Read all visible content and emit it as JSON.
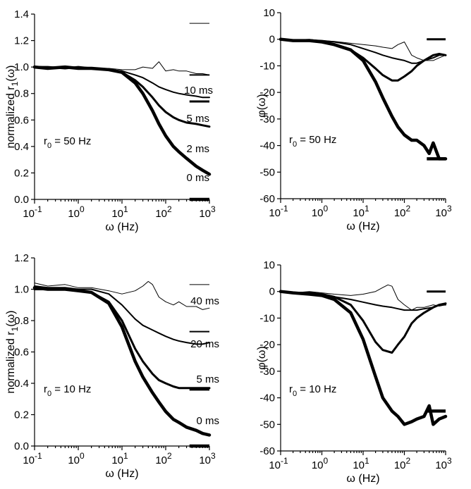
{
  "chart_data": [
    {
      "type": "line",
      "ylabel_main": "normalized r",
      "ylabel_sub": "1",
      "ylabel_tail": "(ω)",
      "xlabel": "ω (Hz)",
      "xscale": "log",
      "xlim": [
        0.1,
        1000
      ],
      "ylim": [
        0,
        1.4
      ],
      "yticks": [
        "0.0",
        "0.2",
        "0.4",
        "0.6",
        "0.8",
        "1.0",
        "1.2",
        "1.4"
      ],
      "xticks": [
        {
          "base": "10",
          "exp": "-1"
        },
        {
          "base": "10",
          "exp": "0"
        },
        {
          "base": "10",
          "exp": "1"
        },
        {
          "base": "10",
          "exp": "2"
        },
        {
          "base": "10",
          "exp": "3"
        }
      ],
      "note_main": "r",
      "note_sub": "0",
      "note_tail": " = 50 Hz",
      "series": [
        {
          "name": "10 ms",
          "weight": 1,
          "asymptote": 1.33,
          "x": [
            0.1,
            0.2,
            0.5,
            1,
            2,
            5,
            10,
            20,
            30,
            50,
            70,
            100,
            150,
            200,
            300,
            500,
            700,
            1000
          ],
          "y": [
            1.0,
            0.99,
            1.0,
            0.99,
            0.99,
            0.99,
            0.98,
            0.98,
            1.0,
            0.99,
            1.04,
            0.97,
            0.98,
            0.97,
            0.97,
            0.95,
            0.95,
            0.94
          ]
        },
        {
          "name": "5 ms",
          "weight": 2,
          "asymptote": 0.94,
          "x": [
            0.1,
            0.2,
            0.5,
            1,
            2,
            5,
            10,
            20,
            30,
            50,
            70,
            100,
            150,
            200,
            300,
            500,
            700,
            1000
          ],
          "y": [
            1.0,
            0.99,
            1.0,
            0.99,
            0.99,
            0.98,
            0.97,
            0.94,
            0.92,
            0.88,
            0.85,
            0.83,
            0.81,
            0.8,
            0.79,
            0.78,
            0.77,
            0.77
          ]
        },
        {
          "name": "2 ms",
          "weight": 3,
          "asymptote": 0.74,
          "x": [
            0.1,
            0.2,
            0.5,
            1,
            2,
            5,
            10,
            20,
            30,
            50,
            70,
            100,
            150,
            200,
            300,
            500,
            700,
            1000
          ],
          "y": [
            1.0,
            1.0,
            0.99,
            1.0,
            0.99,
            0.98,
            0.96,
            0.9,
            0.85,
            0.77,
            0.71,
            0.66,
            0.62,
            0.6,
            0.58,
            0.57,
            0.56,
            0.55
          ]
        },
        {
          "name": "0 ms",
          "weight": 4.5,
          "asymptote": 0.0,
          "x": [
            0.1,
            0.2,
            0.5,
            1,
            2,
            5,
            10,
            20,
            30,
            50,
            70,
            100,
            150,
            200,
            300,
            500,
            700,
            1000
          ],
          "y": [
            1.0,
            0.99,
            1.0,
            0.99,
            0.99,
            0.98,
            0.96,
            0.88,
            0.8,
            0.67,
            0.57,
            0.48,
            0.4,
            0.36,
            0.31,
            0.25,
            0.22,
            0.19
          ]
        }
      ]
    },
    {
      "type": "line",
      "ylabel": "φ(ω)",
      "xlabel": "ω (Hz)",
      "xscale": "log",
      "xlim": [
        0.1,
        1000
      ],
      "ylim": [
        -60,
        10
      ],
      "yticks": [
        "-60",
        "-50",
        "-40",
        "-30",
        "-20",
        "-10",
        "0",
        "10"
      ],
      "xticks": [
        {
          "base": "10",
          "exp": "-1"
        },
        {
          "base": "10",
          "exp": "0"
        },
        {
          "base": "10",
          "exp": "1"
        },
        {
          "base": "10",
          "exp": "2"
        },
        {
          "base": "10",
          "exp": "3"
        }
      ],
      "note_main": "r",
      "note_sub": "0",
      "note_tail": " = 50 Hz",
      "series": [
        {
          "weight": 1,
          "asymptote": 0,
          "x": [
            0.1,
            0.2,
            0.5,
            1,
            2,
            5,
            10,
            20,
            30,
            50,
            70,
            100,
            150,
            200,
            300,
            500,
            700,
            1000
          ],
          "y": [
            0,
            -0.3,
            0,
            -0.5,
            -0.8,
            -1.5,
            -2,
            -2.5,
            -3,
            -3.5,
            -2,
            -1,
            -6,
            -7,
            -8,
            -8,
            -7,
            -6
          ]
        },
        {
          "weight": 2,
          "asymptote": 0,
          "x": [
            0.1,
            0.2,
            0.5,
            1,
            2,
            5,
            10,
            20,
            30,
            50,
            70,
            100,
            150,
            200,
            300,
            500,
            700,
            1000
          ],
          "y": [
            0,
            -0.5,
            -0.3,
            -0.5,
            -1,
            -2,
            -3.5,
            -5,
            -6,
            -7,
            -7.5,
            -8,
            -9,
            -9,
            -8,
            -7,
            -6,
            -6
          ]
        },
        {
          "weight": 3,
          "asymptote": 0,
          "x": [
            0.1,
            0.2,
            0.5,
            1,
            2,
            5,
            10,
            20,
            30,
            50,
            70,
            100,
            150,
            200,
            300,
            500,
            700,
            1000
          ],
          "y": [
            0,
            -0.5,
            -0.5,
            -1,
            -2,
            -4,
            -7,
            -11,
            -13.5,
            -15.5,
            -15.5,
            -14,
            -12,
            -10,
            -8,
            -6,
            -5.5,
            -6
          ]
        },
        {
          "weight": 4.5,
          "asymptote": -45,
          "x": [
            0.1,
            0.2,
            0.5,
            1,
            2,
            5,
            10,
            20,
            30,
            50,
            70,
            100,
            150,
            200,
            300,
            400,
            500,
            700,
            1000
          ],
          "y": [
            0,
            -0.5,
            -0.5,
            -1,
            -2,
            -4,
            -8,
            -16,
            -22,
            -29,
            -33,
            -36,
            -38,
            -38,
            -40,
            -43,
            -39,
            -45,
            -45
          ]
        }
      ]
    },
    {
      "type": "line",
      "ylabel_main": "normalized r",
      "ylabel_sub": "1",
      "ylabel_tail": "(ω)",
      "xlabel": "ω (Hz)",
      "xscale": "log",
      "xlim": [
        0.1,
        1000
      ],
      "ylim": [
        0,
        1.2
      ],
      "yticks": [
        "0.0",
        "0.2",
        "0.4",
        "0.6",
        "0.8",
        "1.0",
        "1.2"
      ],
      "xticks": [
        {
          "base": "10",
          "exp": "-1"
        },
        {
          "base": "10",
          "exp": "0"
        },
        {
          "base": "10",
          "exp": "1"
        },
        {
          "base": "10",
          "exp": "2"
        },
        {
          "base": "10",
          "exp": "3"
        }
      ],
      "note_main": "r",
      "note_sub": "0",
      "note_tail": " = 10 Hz",
      "series": [
        {
          "name": "40 ms",
          "weight": 1,
          "asymptote": 1.03,
          "x": [
            0.1,
            0.2,
            0.5,
            1,
            2,
            5,
            10,
            20,
            30,
            40,
            50,
            70,
            100,
            150,
            200,
            300,
            500,
            700,
            1000
          ],
          "y": [
            1.04,
            1.02,
            1.03,
            1.01,
            1.01,
            0.99,
            0.97,
            0.99,
            1.02,
            1.05,
            1.03,
            0.95,
            0.92,
            0.9,
            0.92,
            0.89,
            0.89,
            0.87,
            0.88
          ]
        },
        {
          "name": "20 ms",
          "weight": 2,
          "asymptote": 0.73,
          "x": [
            0.1,
            0.2,
            0.5,
            1,
            2,
            5,
            10,
            20,
            30,
            50,
            70,
            100,
            150,
            200,
            300,
            500,
            700,
            1000
          ],
          "y": [
            1.02,
            1.01,
            1.01,
            1.0,
            1.0,
            0.97,
            0.9,
            0.81,
            0.77,
            0.74,
            0.72,
            0.7,
            0.68,
            0.67,
            0.66,
            0.65,
            0.65,
            0.66
          ]
        },
        {
          "name": "5 ms",
          "weight": 3,
          "asymptote": 0.36,
          "x": [
            0.1,
            0.2,
            0.5,
            1,
            2,
            5,
            10,
            20,
            30,
            50,
            70,
            100,
            150,
            200,
            300,
            500,
            700,
            1000
          ],
          "y": [
            1.0,
            1.0,
            1.0,
            0.99,
            0.98,
            0.92,
            0.8,
            0.62,
            0.54,
            0.46,
            0.42,
            0.4,
            0.38,
            0.37,
            0.37,
            0.37,
            0.37,
            0.37
          ]
        },
        {
          "name": "0 ms",
          "weight": 4.5,
          "asymptote": 0.0,
          "x": [
            0.1,
            0.2,
            0.5,
            1,
            2,
            5,
            10,
            20,
            30,
            50,
            70,
            100,
            150,
            200,
            300,
            500,
            700,
            1000
          ],
          "y": [
            1.01,
            1.0,
            1.0,
            0.99,
            0.98,
            0.91,
            0.76,
            0.54,
            0.44,
            0.34,
            0.28,
            0.22,
            0.17,
            0.15,
            0.12,
            0.1,
            0.08,
            0.07
          ]
        }
      ]
    },
    {
      "type": "line",
      "ylabel": "φ(ω)",
      "xlabel": "ω (Hz)",
      "xscale": "log",
      "xlim": [
        0.1,
        1000
      ],
      "ylim": [
        -60,
        10
      ],
      "yticks": [
        "-60",
        "-50",
        "-40",
        "-30",
        "-20",
        "-10",
        "0",
        "10"
      ],
      "xticks": [
        {
          "base": "10",
          "exp": "-1"
        },
        {
          "base": "10",
          "exp": "0"
        },
        {
          "base": "10",
          "exp": "1"
        },
        {
          "base": "10",
          "exp": "2"
        },
        {
          "base": "10",
          "exp": "3"
        }
      ],
      "note_main": "r",
      "note_sub": "0",
      "note_tail": " = 10 Hz",
      "series": [
        {
          "weight": 1,
          "asymptote": 0,
          "x": [
            0.1,
            0.2,
            0.5,
            1,
            2,
            5,
            10,
            20,
            30,
            40,
            50,
            70,
            100,
            150,
            200,
            300,
            500,
            700,
            1000
          ],
          "y": [
            0,
            -0.5,
            0,
            -0.5,
            -1,
            -1.5,
            -1,
            0,
            1.5,
            2.5,
            2,
            -3,
            -5,
            -7,
            -6,
            -6,
            -5,
            -5.5,
            -5
          ]
        },
        {
          "weight": 2,
          "asymptote": 0,
          "x": [
            0.1,
            0.2,
            0.5,
            1,
            2,
            5,
            10,
            20,
            30,
            50,
            70,
            100,
            150,
            200,
            300,
            500,
            700,
            1000
          ],
          "y": [
            0,
            -0.5,
            -0.5,
            -1,
            -2,
            -3,
            -4,
            -5,
            -5.5,
            -6,
            -6.5,
            -7,
            -7,
            -7,
            -6.5,
            -6,
            -5,
            -5
          ]
        },
        {
          "weight": 3,
          "asymptote": 0,
          "x": [
            0.1,
            0.2,
            0.5,
            1,
            2,
            5,
            10,
            20,
            30,
            50,
            70,
            100,
            150,
            200,
            300,
            500,
            700,
            1000
          ],
          "y": [
            0,
            -0.5,
            -0.5,
            -1,
            -2,
            -5,
            -11,
            -19,
            -22,
            -23,
            -20,
            -17,
            -12,
            -10,
            -8,
            -6,
            -5,
            -4.5
          ]
        },
        {
          "weight": 4.5,
          "asymptote": -45,
          "x": [
            0.1,
            0.2,
            0.5,
            1,
            2,
            5,
            10,
            20,
            30,
            50,
            70,
            100,
            150,
            200,
            300,
            400,
            500,
            700,
            1000
          ],
          "y": [
            0,
            -0.5,
            -1,
            -1.5,
            -3,
            -8,
            -18,
            -32,
            -40,
            -45,
            -47,
            -50,
            -49,
            -48,
            -47,
            -43,
            -50,
            -48,
            -47
          ]
        }
      ]
    }
  ]
}
